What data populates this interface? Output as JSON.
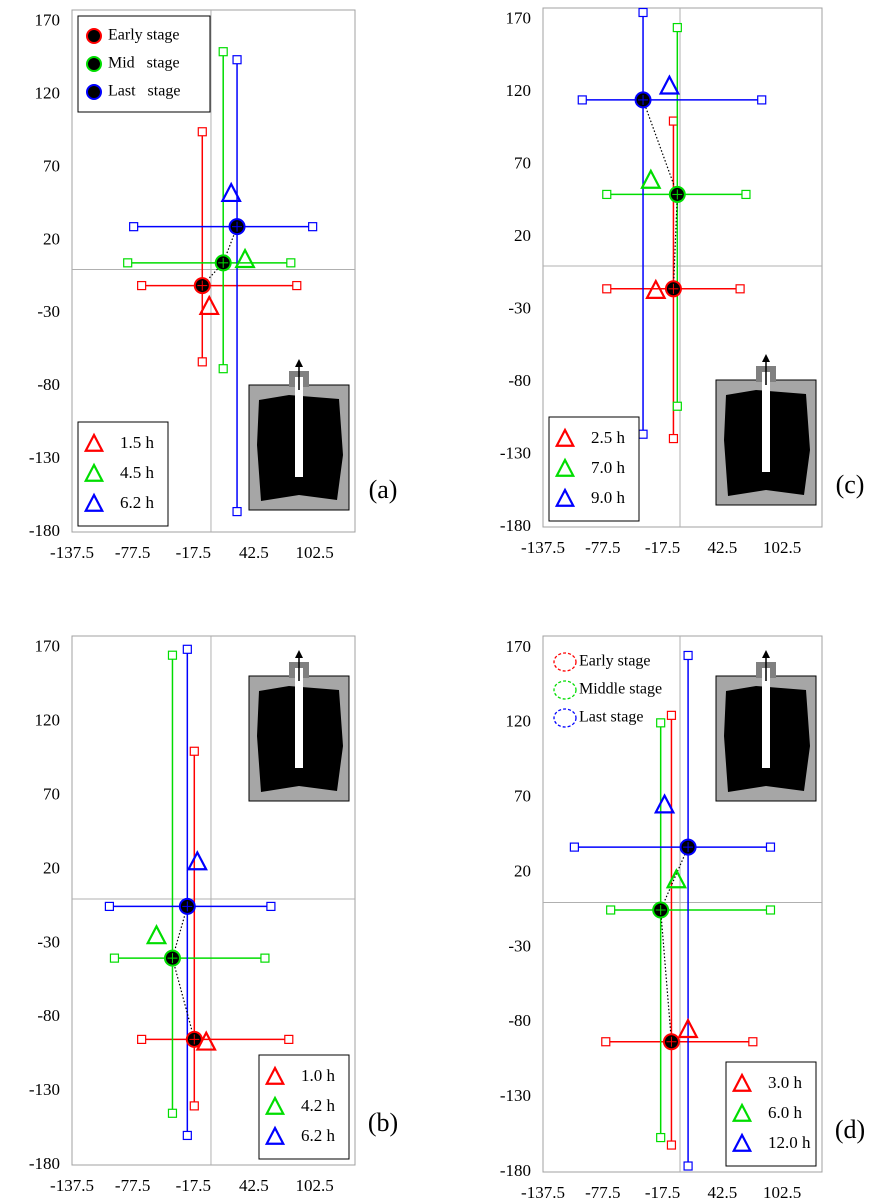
{
  "chart_data": [
    {
      "type": "errorcross",
      "label": "(a)",
      "xlim": [
        -137.5,
        142.5
      ],
      "ylim": [
        -180,
        178
      ],
      "xticks": [
        -137.5,
        -77.5,
        -17.5,
        42.5,
        102.5
      ],
      "yticks": [
        170,
        120,
        70,
        20,
        -30,
        -80,
        -130,
        -180
      ],
      "origin_lines": true,
      "stage_legend": "upper left",
      "stage_legend_marker": "filled-circle",
      "time_legend": "lower left",
      "inset": "lower right",
      "series": [
        {
          "name": "Early stage",
          "color": "#ff0000",
          "x": -8.6,
          "y": -11,
          "x_range": [
            -68.6,
            84.9
          ],
          "y_range": [
            -63.3,
            94.5
          ]
        },
        {
          "name": "Mid   stage",
          "color": "#00dd00",
          "x": 12.1,
          "y": 4.6,
          "x_range": [
            -82.4,
            79
          ],
          "y_range": [
            -68,
            149.4
          ]
        },
        {
          "name": "Last   stage",
          "color": "#0000ff",
          "x": 25.8,
          "y": 29.4,
          "x_range": [
            -76.5,
            100.6
          ],
          "y_range": [
            -166,
            143.9
          ]
        }
      ],
      "markers": [
        {
          "label": "1.5 h",
          "color": "#ff0000",
          "x": -1.7,
          "y": -25.5
        },
        {
          "label": "4.5 h",
          "color": "#00dd00",
          "x": 33.7,
          "y": 6.7
        },
        {
          "label": "6.2 h",
          "color": "#0000ff",
          "x": 20,
          "y": 52
        }
      ]
    },
    {
      "type": "errorcross",
      "label": "(b)",
      "xlim": [
        -137.5,
        142.5
      ],
      "ylim": [
        -180,
        178
      ],
      "xticks": [
        -137.5,
        -77.5,
        -17.5,
        42.5,
        102.5
      ],
      "yticks": [
        170,
        120,
        70,
        20,
        -30,
        -80,
        -130,
        -180
      ],
      "origin_lines": true,
      "time_legend": "lower right",
      "inset": "upper right",
      "series": [
        {
          "color": "#ff0000",
          "x": -16.5,
          "y": -95,
          "x_range": [
            -68.6,
            77
          ],
          "y_range": [
            -140,
            100
          ]
        },
        {
          "color": "#00dd00",
          "x": -38.1,
          "y": -40,
          "x_range": [
            -95.5,
            53.4
          ],
          "y_range": [
            -145,
            165
          ]
        },
        {
          "color": "#0000ff",
          "x": -23.4,
          "y": -5,
          "x_range": [
            -100.5,
            59.3
          ],
          "y_range": [
            -160,
            169
          ]
        }
      ],
      "markers": [
        {
          "label": "1.0 h",
          "color": "#ff0000",
          "x": -4.7,
          "y": -97
        },
        {
          "label": "4.2 h",
          "color": "#00dd00",
          "x": -53.9,
          "y": -25
        },
        {
          "label": "6.2 h",
          "color": "#0000ff",
          "x": -13.5,
          "y": 25
        }
      ]
    },
    {
      "type": "errorcross",
      "label": "(c)",
      "xlim": [
        -137.5,
        142.5
      ],
      "ylim": [
        -180,
        178
      ],
      "xticks": [
        -137.5,
        -77.5,
        -17.5,
        42.5,
        102.5
      ],
      "yticks": [
        170,
        120,
        70,
        20,
        -30,
        -80,
        -130,
        -180
      ],
      "origin_lines": true,
      "time_legend": "lower left",
      "inset": "lower right",
      "series": [
        {
          "color": "#ff0000",
          "x": -6.6,
          "y": -15.7,
          "x_range": [
            -73.5,
            60.3
          ],
          "y_range": [
            -119,
            100
          ]
        },
        {
          "color": "#00dd00",
          "x": -2.7,
          "y": 49.4,
          "x_range": [
            -73.5,
            66.2
          ],
          "y_range": [
            -96.7,
            164.5
          ]
        },
        {
          "color": "#0000ff",
          "x": -37.1,
          "y": 114.6,
          "x_range": [
            -98.1,
            82
          ],
          "y_range": [
            -116,
            174.9
          ]
        }
      ],
      "markers": [
        {
          "label": "2.5 h",
          "color": "#ff0000",
          "x": -24.3,
          "y": -17
        },
        {
          "label": "7.0 h",
          "color": "#00dd00",
          "x": -29.3,
          "y": 59
        },
        {
          "label": "9.0 h",
          "color": "#0000ff",
          "x": -10.6,
          "y": 124
        }
      ]
    },
    {
      "type": "errorcross",
      "label": "(d)",
      "xlim": [
        -137.5,
        142.5
      ],
      "ylim": [
        -180,
        178
      ],
      "xticks": [
        -137.5,
        -77.5,
        -17.5,
        42.5,
        102.5
      ],
      "yticks": [
        170,
        120,
        70,
        20,
        -30,
        -80,
        -130,
        -180
      ],
      "origin_lines": true,
      "stage_legend": "upper left",
      "stage_legend_marker": "dashed-circle",
      "time_legend": "lower right",
      "inset": "upper right",
      "series": [
        {
          "name": "Early stage",
          "color": "#ff0000",
          "x": -8.6,
          "y": -93,
          "x_range": [
            -74.5,
            73.1
          ],
          "y_range": [
            -162,
            125
          ]
        },
        {
          "name": "Middle stage",
          "color": "#00dd00",
          "x": -19.4,
          "y": -5,
          "x_range": [
            -69.6,
            90.8
          ],
          "y_range": [
            -157,
            120
          ]
        },
        {
          "name": "Last stage",
          "color": "#0000ff",
          "x": 8.1,
          "y": 37,
          "x_range": [
            -106,
            90.8
          ],
          "y_range": [
            -176,
            165
          ]
        }
      ],
      "markers": [
        {
          "label": "3.0 h",
          "color": "#ff0000",
          "x": 8,
          "y": -85
        },
        {
          "label": "6.0 h",
          "color": "#00dd00",
          "x": -3.6,
          "y": 15
        },
        {
          "label": "12.0 h",
          "color": "#0000ff",
          "x": -15.5,
          "y": 65
        }
      ]
    }
  ]
}
